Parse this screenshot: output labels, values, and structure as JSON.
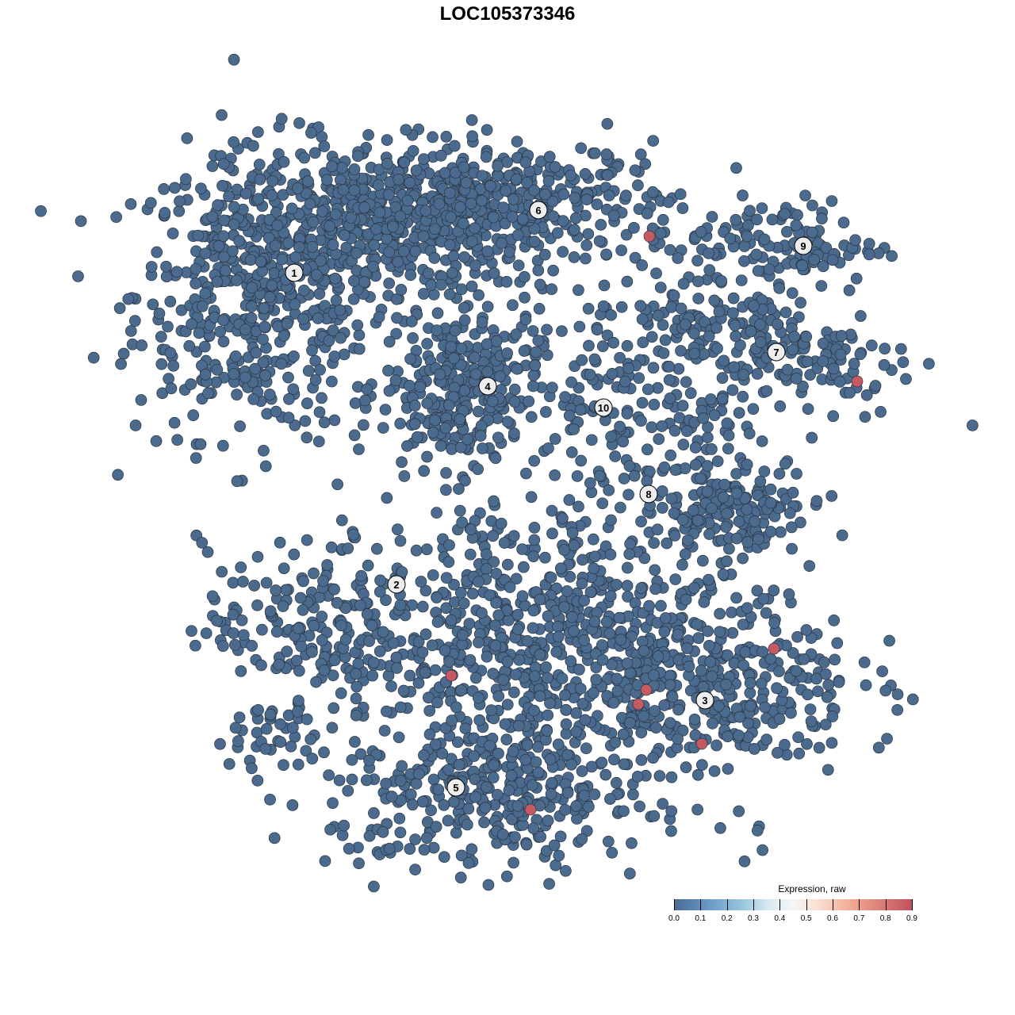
{
  "chart_data": {
    "type": "scatter",
    "title": "LOC105373346",
    "xlabel": "",
    "ylabel": "",
    "axes_visible": false,
    "grid": false,
    "point_color_default": "#4a6a8e",
    "point_color_high": "#c55a62",
    "clusters": [
      {
        "label": "1",
        "label_pos": [
          -26.9,
          29.6
        ],
        "blobs": [
          {
            "center": [
              -31,
              27
            ],
            "spread": [
              8,
              9
            ],
            "n": 520
          },
          {
            "center": [
              -17,
              36
            ],
            "spread": [
              9,
              5
            ],
            "n": 360
          }
        ]
      },
      {
        "label": "6",
        "label_pos": [
          3.9,
          37.5
        ],
        "blobs": [
          {
            "center": [
              0,
              38
            ],
            "spread": [
              11,
              4
            ],
            "n": 400
          }
        ]
      },
      {
        "label": "4",
        "label_pos": [
          -2.5,
          15.3
        ],
        "blobs": [
          {
            "center": [
              -6,
              15
            ],
            "spread": [
              5,
              5
            ],
            "n": 300
          }
        ]
      },
      {
        "label": "9",
        "label_pos": [
          37.3,
          33
        ],
        "blobs": [
          {
            "center": [
              35,
              33
            ],
            "spread": [
              6,
              3
            ],
            "n": 120
          }
        ]
      },
      {
        "label": "7",
        "label_pos": [
          33.9,
          19.6
        ],
        "blobs": [
          {
            "center": [
              36,
              19
            ],
            "spread": [
              8,
              4
            ],
            "n": 150
          },
          {
            "center": [
              24,
              24
            ],
            "spread": [
              5,
              3
            ],
            "n": 80
          }
        ]
      },
      {
        "label": "10",
        "label_pos": [
          12.1,
          12.6
        ],
        "blobs": [
          {
            "center": [
              12,
              16
            ],
            "spread": [
              4,
              5
            ],
            "n": 80
          }
        ]
      },
      {
        "label": "8",
        "label_pos": [
          17.8,
          1.7
        ],
        "blobs": [
          {
            "center": [
              24,
              4
            ],
            "spread": [
              6,
              6
            ],
            "n": 150
          },
          {
            "center": [
              29,
              -1
            ],
            "spread": [
              4,
              2.5
            ],
            "n": 80
          }
        ]
      },
      {
        "label": "2",
        "label_pos": [
          -14,
          -9.7
        ],
        "blobs": [
          {
            "center": [
              -24,
              -15
            ],
            "spread": [
              7,
              5
            ],
            "n": 200
          }
        ]
      },
      {
        "label": "3",
        "label_pos": [
          24.9,
          -24.3
        ],
        "blobs": [
          {
            "center": [
              26,
              -22
            ],
            "spread": [
              9,
              6
            ],
            "n": 350
          }
        ]
      },
      {
        "label": "5",
        "label_pos": [
          -6.5,
          -35.3
        ],
        "blobs": [
          {
            "center": [
              -2,
              -36
            ],
            "spread": [
              10,
              5
            ],
            "n": 350
          }
        ]
      },
      {
        "label": "",
        "label_pos": null,
        "blobs": [
          {
            "center": [
              4,
              -16
            ],
            "spread": [
              11,
              9
            ],
            "n": 600
          },
          {
            "center": [
              -29,
              -29
            ],
            "spread": [
              4,
              2
            ],
            "n": 40
          }
        ]
      }
    ],
    "high_expression_points": [
      {
        "x": 17.9,
        "y": 34.2,
        "value": 0.9
      },
      {
        "x": 44.1,
        "y": 15.9,
        "value": 0.9
      },
      {
        "x": -7.1,
        "y": -21.2,
        "value": 0.9
      },
      {
        "x": 17.5,
        "y": -23,
        "value": 0.9
      },
      {
        "x": 16.5,
        "y": -24.8,
        "value": 0.9
      },
      {
        "x": 33.6,
        "y": -17.8,
        "value": 0.9
      },
      {
        "x": 24.5,
        "y": -29.8,
        "value": 0.9
      },
      {
        "x": 2.9,
        "y": -38.1,
        "value": 0.9
      }
    ],
    "legend": {
      "title": "Expression, raw",
      "placement": "bottom-right",
      "ticks": [
        "0.0",
        "0.1",
        "0.2",
        "0.3",
        "0.4",
        "0.5",
        "0.6",
        "0.7",
        "0.8",
        "0.9"
      ],
      "range": [
        0,
        0.9
      ]
    }
  }
}
